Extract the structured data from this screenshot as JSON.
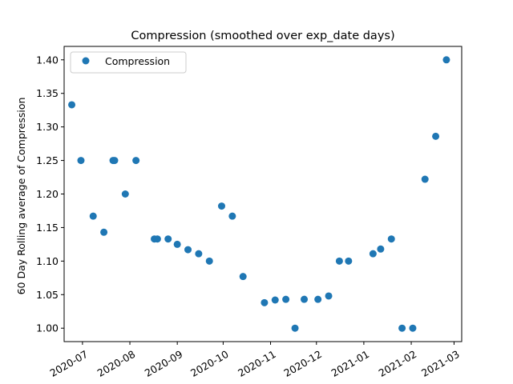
{
  "chart_data": {
    "type": "scatter",
    "title": "Compression  (smoothed over exp_date days)",
    "xlabel": "",
    "ylabel": "60 Day Rolling average of Compression",
    "marker_color": "#1f77b4",
    "legend": {
      "entries": [
        "Compression"
      ],
      "placement": "top-left"
    },
    "grid": false,
    "xlim": [
      "2020-06-19",
      "2021-03-06"
    ],
    "ylim": [
      0.98,
      1.42
    ],
    "x_ticks": [
      "2020-07-01",
      "2020-08-01",
      "2020-09-01",
      "2020-10-01",
      "2020-11-01",
      "2020-12-01",
      "2021-01-01",
      "2021-02-01",
      "2021-03-01"
    ],
    "x_tick_labels": [
      "2020-07",
      "2020-08",
      "2020-09",
      "2020-10",
      "2020-11",
      "2020-12",
      "2021-01",
      "2021-02",
      "2021-03"
    ],
    "y_ticks": [
      1.0,
      1.05,
      1.1,
      1.15,
      1.2,
      1.25,
      1.3,
      1.35,
      1.4
    ],
    "y_tick_labels": [
      "1.00",
      "1.05",
      "1.10",
      "1.15",
      "1.20",
      "1.25",
      "1.30",
      "1.35",
      "1.40"
    ],
    "series": [
      {
        "name": "Compression",
        "points": [
          [
            "2020-06-24",
            1.333
          ],
          [
            "2020-06-30",
            1.25
          ],
          [
            "2020-07-08",
            1.167
          ],
          [
            "2020-07-15",
            1.143
          ],
          [
            "2020-07-21",
            1.25
          ],
          [
            "2020-07-22",
            1.25
          ],
          [
            "2020-07-29",
            1.2
          ],
          [
            "2020-08-05",
            1.25
          ],
          [
            "2020-08-17",
            1.133
          ],
          [
            "2020-08-19",
            1.133
          ],
          [
            "2020-08-26",
            1.133
          ],
          [
            "2020-09-01",
            1.125
          ],
          [
            "2020-09-08",
            1.117
          ],
          [
            "2020-09-15",
            1.111
          ],
          [
            "2020-09-22",
            1.1
          ],
          [
            "2020-09-30",
            1.182
          ],
          [
            "2020-10-07",
            1.167
          ],
          [
            "2020-10-14",
            1.077
          ],
          [
            "2020-10-28",
            1.038
          ],
          [
            "2020-11-04",
            1.042
          ],
          [
            "2020-11-11",
            1.043
          ],
          [
            "2020-11-17",
            1.0
          ],
          [
            "2020-11-23",
            1.043
          ],
          [
            "2020-12-02",
            1.043
          ],
          [
            "2020-12-09",
            1.048
          ],
          [
            "2020-12-16",
            1.1
          ],
          [
            "2020-12-22",
            1.1
          ],
          [
            "2021-01-07",
            1.111
          ],
          [
            "2021-01-12",
            1.118
          ],
          [
            "2021-01-19",
            1.133
          ],
          [
            "2021-01-26",
            1.0
          ],
          [
            "2021-02-02",
            1.0
          ],
          [
            "2021-02-10",
            1.222
          ],
          [
            "2021-02-17",
            1.286
          ],
          [
            "2021-02-24",
            1.4
          ]
        ]
      }
    ]
  }
}
